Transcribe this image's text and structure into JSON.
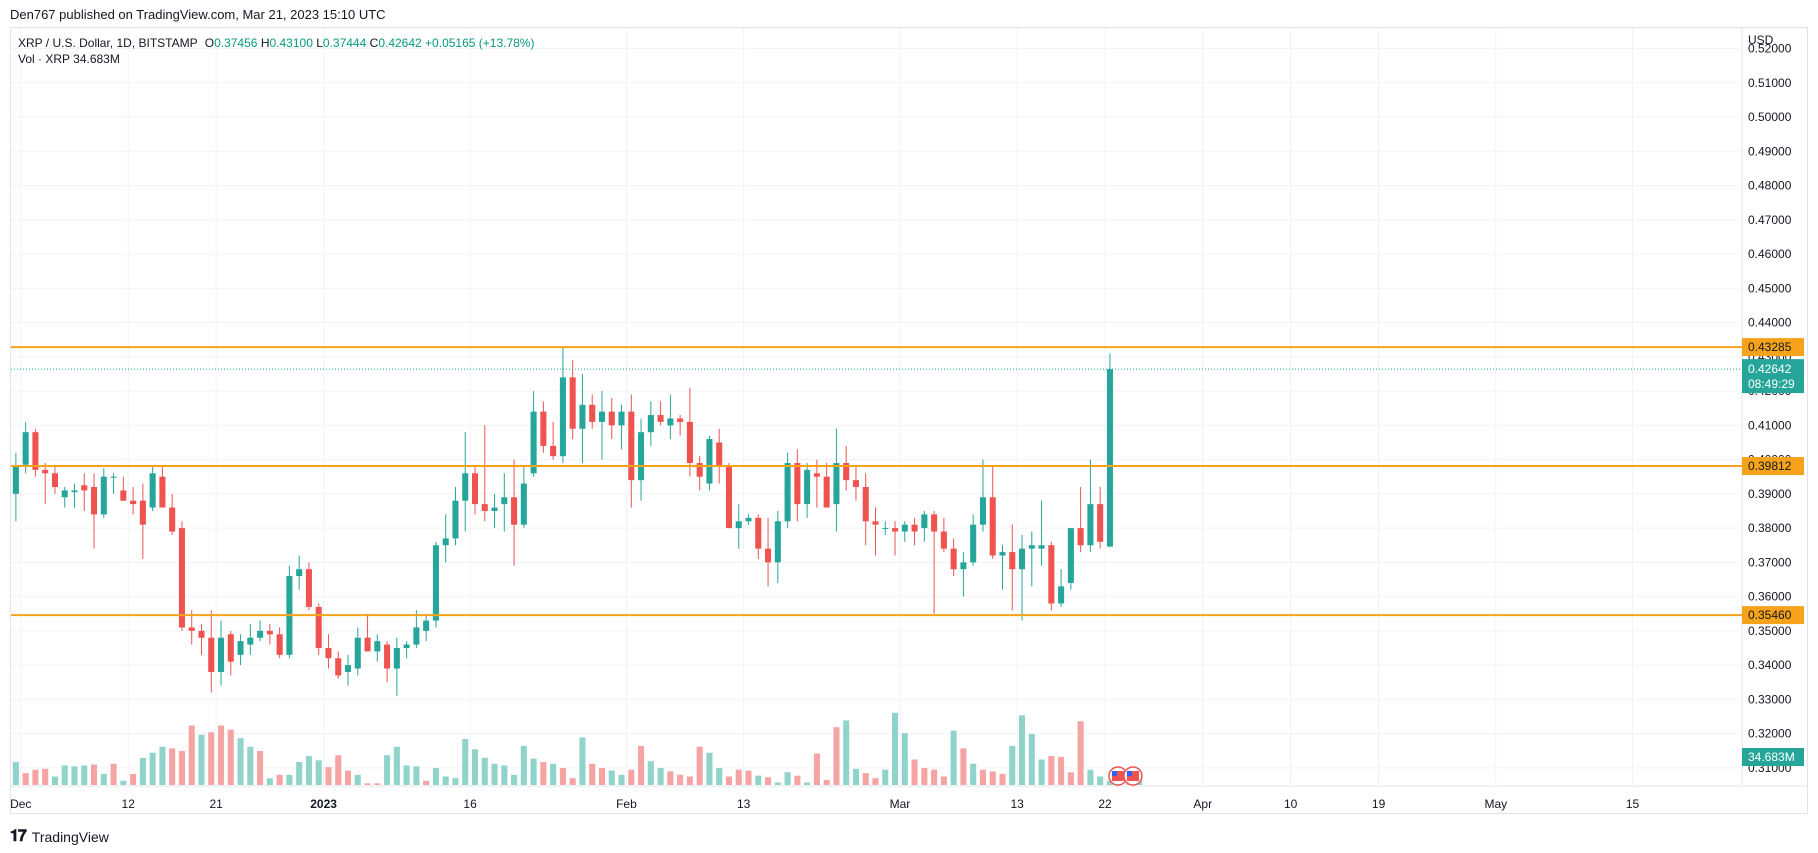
{
  "header": {
    "publish_line": "Den767 published on TradingView.com, Mar 21, 2023 15:10 UTC"
  },
  "legend": {
    "symbol": "XRP / U.S. Dollar, 1D, BITSTAMP",
    "open_label": "O",
    "open": "0.37456",
    "high_label": "H",
    "high": "0.43100",
    "low_label": "L",
    "low": "0.37444",
    "close_label": "C",
    "close": "0.42642",
    "change": "+0.05165 (+13.78%)",
    "volume_label": "Vol · XRP",
    "volume": "34.683M"
  },
  "footer": {
    "brand": "TradingView"
  },
  "colors": {
    "up": "#26a69a",
    "down": "#ef5350",
    "up_volume": "#8fd3cb",
    "down_volume": "#f5a3a3",
    "level_line": "#f7a21b",
    "grid": "#f0f3fa"
  },
  "chart_data": {
    "type": "candlestick",
    "currency_label": "USD",
    "ylim": [
      0.305,
      0.526
    ],
    "y_ticks": [
      "0.31000",
      "0.32000",
      "0.33000",
      "0.34000",
      "0.35000",
      "0.36000",
      "0.37000",
      "0.38000",
      "0.39000",
      "0.40000",
      "0.41000",
      "0.42000",
      "0.43000",
      "0.44000",
      "0.45000",
      "0.46000",
      "0.47000",
      "0.48000",
      "0.49000",
      "0.50000",
      "0.51000",
      "0.52000"
    ],
    "x_labels": [
      "Dec",
      "12",
      "21",
      "2023",
      "16",
      "Feb",
      "13",
      "Mar",
      "13",
      "22",
      "Apr",
      "10",
      "19",
      "May",
      "15"
    ],
    "x_label_dates": [
      "2022-12-01",
      "2022-12-12",
      "2022-12-21",
      "2023-01-01",
      "2023-01-16",
      "2023-02-01",
      "2023-02-13",
      "2023-03-01",
      "2023-03-13",
      "2023-03-22",
      "2023-04-01",
      "2023-04-10",
      "2023-04-19",
      "2023-05-01",
      "2023-05-15"
    ],
    "x_range": [
      "2022-11-30",
      "2023-05-26"
    ],
    "horizontal_levels": [
      0.43285,
      0.39812,
      0.3546
    ],
    "level_labels": [
      "0.43285",
      "0.39812",
      "0.35460"
    ],
    "last_price": "0.42642",
    "countdown": "08:49:29",
    "volume_badge": "34.683M",
    "candles": [
      {
        "o": 0.39,
        "h": 0.402,
        "l": 0.382,
        "c": 0.398
      },
      {
        "o": 0.3985,
        "h": 0.411,
        "l": 0.396,
        "c": 0.408
      },
      {
        "o": 0.408,
        "h": 0.409,
        "l": 0.395,
        "c": 0.397
      },
      {
        "o": 0.397,
        "h": 0.399,
        "l": 0.387,
        "c": 0.396
      },
      {
        "o": 0.396,
        "h": 0.3985,
        "l": 0.39,
        "c": 0.392
      },
      {
        "o": 0.389,
        "h": 0.392,
        "l": 0.386,
        "c": 0.391
      },
      {
        "o": 0.3905,
        "h": 0.393,
        "l": 0.386,
        "c": 0.391
      },
      {
        "o": 0.3925,
        "h": 0.396,
        "l": 0.385,
        "c": 0.391
      },
      {
        "o": 0.392,
        "h": 0.396,
        "l": 0.374,
        "c": 0.384
      },
      {
        "o": 0.384,
        "h": 0.3975,
        "l": 0.383,
        "c": 0.395
      },
      {
        "o": 0.395,
        "h": 0.396,
        "l": 0.39,
        "c": 0.395
      },
      {
        "o": 0.391,
        "h": 0.395,
        "l": 0.388,
        "c": 0.388
      },
      {
        "o": 0.388,
        "h": 0.392,
        "l": 0.384,
        "c": 0.387
      },
      {
        "o": 0.388,
        "h": 0.393,
        "l": 0.371,
        "c": 0.381
      },
      {
        "o": 0.386,
        "h": 0.398,
        "l": 0.385,
        "c": 0.396
      },
      {
        "o": 0.395,
        "h": 0.398,
        "l": 0.386,
        "c": 0.386
      },
      {
        "o": 0.386,
        "h": 0.39,
        "l": 0.378,
        "c": 0.379
      },
      {
        "o": 0.38,
        "h": 0.382,
        "l": 0.35,
        "c": 0.351
      },
      {
        "o": 0.351,
        "h": 0.356,
        "l": 0.346,
        "c": 0.35
      },
      {
        "o": 0.35,
        "h": 0.352,
        "l": 0.343,
        "c": 0.348
      },
      {
        "o": 0.348,
        "h": 0.356,
        "l": 0.332,
        "c": 0.338
      },
      {
        "o": 0.338,
        "h": 0.353,
        "l": 0.334,
        "c": 0.348
      },
      {
        "o": 0.349,
        "h": 0.35,
        "l": 0.337,
        "c": 0.341
      },
      {
        "o": 0.343,
        "h": 0.349,
        "l": 0.34,
        "c": 0.347
      },
      {
        "o": 0.346,
        "h": 0.352,
        "l": 0.343,
        "c": 0.348
      },
      {
        "o": 0.348,
        "h": 0.353,
        "l": 0.347,
        "c": 0.35
      },
      {
        "o": 0.35,
        "h": 0.352,
        "l": 0.346,
        "c": 0.349
      },
      {
        "o": 0.349,
        "h": 0.351,
        "l": 0.342,
        "c": 0.343
      },
      {
        "o": 0.343,
        "h": 0.369,
        "l": 0.342,
        "c": 0.366
      },
      {
        "o": 0.366,
        "h": 0.372,
        "l": 0.362,
        "c": 0.368
      },
      {
        "o": 0.368,
        "h": 0.37,
        "l": 0.356,
        "c": 0.357
      },
      {
        "o": 0.357,
        "h": 0.358,
        "l": 0.343,
        "c": 0.345
      },
      {
        "o": 0.345,
        "h": 0.349,
        "l": 0.339,
        "c": 0.342
      },
      {
        "o": 0.342,
        "h": 0.344,
        "l": 0.336,
        "c": 0.337
      },
      {
        "o": 0.338,
        "h": 0.343,
        "l": 0.334,
        "c": 0.34
      },
      {
        "o": 0.339,
        "h": 0.351,
        "l": 0.337,
        "c": 0.348
      },
      {
        "o": 0.348,
        "h": 0.355,
        "l": 0.344,
        "c": 0.344
      },
      {
        "o": 0.344,
        "h": 0.349,
        "l": 0.341,
        "c": 0.347
      },
      {
        "o": 0.346,
        "h": 0.347,
        "l": 0.335,
        "c": 0.339
      },
      {
        "o": 0.339,
        "h": 0.348,
        "l": 0.331,
        "c": 0.345
      },
      {
        "o": 0.345,
        "h": 0.347,
        "l": 0.342,
        "c": 0.346
      },
      {
        "o": 0.346,
        "h": 0.356,
        "l": 0.345,
        "c": 0.351
      },
      {
        "o": 0.35,
        "h": 0.355,
        "l": 0.347,
        "c": 0.353
      },
      {
        "o": 0.353,
        "h": 0.376,
        "l": 0.351,
        "c": 0.375
      },
      {
        "o": 0.375,
        "h": 0.384,
        "l": 0.37,
        "c": 0.377
      },
      {
        "o": 0.377,
        "h": 0.392,
        "l": 0.375,
        "c": 0.388
      },
      {
        "o": 0.388,
        "h": 0.408,
        "l": 0.379,
        "c": 0.396
      },
      {
        "o": 0.396,
        "h": 0.398,
        "l": 0.384,
        "c": 0.387
      },
      {
        "o": 0.387,
        "h": 0.41,
        "l": 0.382,
        "c": 0.385
      },
      {
        "o": 0.385,
        "h": 0.39,
        "l": 0.38,
        "c": 0.386
      },
      {
        "o": 0.387,
        "h": 0.396,
        "l": 0.379,
        "c": 0.389
      },
      {
        "o": 0.389,
        "h": 0.4,
        "l": 0.369,
        "c": 0.381
      },
      {
        "o": 0.381,
        "h": 0.398,
        "l": 0.38,
        "c": 0.393
      },
      {
        "o": 0.396,
        "h": 0.42,
        "l": 0.395,
        "c": 0.414
      },
      {
        "o": 0.414,
        "h": 0.417,
        "l": 0.402,
        "c": 0.404
      },
      {
        "o": 0.404,
        "h": 0.411,
        "l": 0.4,
        "c": 0.401
      },
      {
        "o": 0.401,
        "h": 0.433,
        "l": 0.399,
        "c": 0.424
      },
      {
        "o": 0.424,
        "h": 0.429,
        "l": 0.406,
        "c": 0.409
      },
      {
        "o": 0.409,
        "h": 0.425,
        "l": 0.399,
        "c": 0.416
      },
      {
        "o": 0.416,
        "h": 0.419,
        "l": 0.409,
        "c": 0.411
      },
      {
        "o": 0.411,
        "h": 0.42,
        "l": 0.4,
        "c": 0.414
      },
      {
        "o": 0.414,
        "h": 0.418,
        "l": 0.406,
        "c": 0.41
      },
      {
        "o": 0.41,
        "h": 0.416,
        "l": 0.403,
        "c": 0.414
      },
      {
        "o": 0.414,
        "h": 0.419,
        "l": 0.386,
        "c": 0.394
      },
      {
        "o": 0.394,
        "h": 0.412,
        "l": 0.388,
        "c": 0.408
      },
      {
        "o": 0.408,
        "h": 0.417,
        "l": 0.404,
        "c": 0.413
      },
      {
        "o": 0.413,
        "h": 0.417,
        "l": 0.41,
        "c": 0.411
      },
      {
        "o": 0.41,
        "h": 0.419,
        "l": 0.406,
        "c": 0.412
      },
      {
        "o": 0.412,
        "h": 0.413,
        "l": 0.407,
        "c": 0.411
      },
      {
        "o": 0.411,
        "h": 0.421,
        "l": 0.395,
        "c": 0.399
      },
      {
        "o": 0.399,
        "h": 0.401,
        "l": 0.391,
        "c": 0.395
      },
      {
        "o": 0.393,
        "h": 0.407,
        "l": 0.391,
        "c": 0.406
      },
      {
        "o": 0.405,
        "h": 0.409,
        "l": 0.393,
        "c": 0.398
      },
      {
        "o": 0.398,
        "h": 0.399,
        "l": 0.38,
        "c": 0.38
      },
      {
        "o": 0.38,
        "h": 0.387,
        "l": 0.374,
        "c": 0.382
      },
      {
        "o": 0.382,
        "h": 0.384,
        "l": 0.381,
        "c": 0.383
      },
      {
        "o": 0.383,
        "h": 0.384,
        "l": 0.371,
        "c": 0.374
      },
      {
        "o": 0.374,
        "h": 0.383,
        "l": 0.363,
        "c": 0.37
      },
      {
        "o": 0.37,
        "h": 0.385,
        "l": 0.364,
        "c": 0.382
      },
      {
        "o": 0.382,
        "h": 0.402,
        "l": 0.38,
        "c": 0.399
      },
      {
        "o": 0.399,
        "h": 0.403,
        "l": 0.382,
        "c": 0.387
      },
      {
        "o": 0.387,
        "h": 0.399,
        "l": 0.383,
        "c": 0.397
      },
      {
        "o": 0.396,
        "h": 0.4,
        "l": 0.386,
        "c": 0.395
      },
      {
        "o": 0.395,
        "h": 0.399,
        "l": 0.386,
        "c": 0.386
      },
      {
        "o": 0.387,
        "h": 0.409,
        "l": 0.379,
        "c": 0.399
      },
      {
        "o": 0.399,
        "h": 0.404,
        "l": 0.391,
        "c": 0.394
      },
      {
        "o": 0.394,
        "h": 0.398,
        "l": 0.388,
        "c": 0.392
      },
      {
        "o": 0.392,
        "h": 0.396,
        "l": 0.375,
        "c": 0.382
      },
      {
        "o": 0.382,
        "h": 0.386,
        "l": 0.372,
        "c": 0.381
      },
      {
        "o": 0.38,
        "h": 0.382,
        "l": 0.378,
        "c": 0.38
      },
      {
        "o": 0.38,
        "h": 0.382,
        "l": 0.372,
        "c": 0.379
      },
      {
        "o": 0.379,
        "h": 0.382,
        "l": 0.376,
        "c": 0.381
      },
      {
        "o": 0.381,
        "h": 0.383,
        "l": 0.375,
        "c": 0.379
      },
      {
        "o": 0.38,
        "h": 0.385,
        "l": 0.376,
        "c": 0.384
      },
      {
        "o": 0.384,
        "h": 0.385,
        "l": 0.355,
        "c": 0.379
      },
      {
        "o": 0.379,
        "h": 0.383,
        "l": 0.373,
        "c": 0.374
      },
      {
        "o": 0.374,
        "h": 0.377,
        "l": 0.366,
        "c": 0.368
      },
      {
        "o": 0.368,
        "h": 0.373,
        "l": 0.36,
        "c": 0.37
      },
      {
        "o": 0.37,
        "h": 0.384,
        "l": 0.369,
        "c": 0.381
      },
      {
        "o": 0.381,
        "h": 0.4,
        "l": 0.379,
        "c": 0.389
      },
      {
        "o": 0.389,
        "h": 0.398,
        "l": 0.371,
        "c": 0.372
      },
      {
        "o": 0.372,
        "h": 0.375,
        "l": 0.362,
        "c": 0.373
      },
      {
        "o": 0.373,
        "h": 0.381,
        "l": 0.356,
        "c": 0.368
      },
      {
        "o": 0.368,
        "h": 0.378,
        "l": 0.353,
        "c": 0.374
      },
      {
        "o": 0.374,
        "h": 0.379,
        "l": 0.363,
        "c": 0.375
      },
      {
        "o": 0.374,
        "h": 0.388,
        "l": 0.369,
        "c": 0.375
      },
      {
        "o": 0.375,
        "h": 0.376,
        "l": 0.356,
        "c": 0.358
      },
      {
        "o": 0.358,
        "h": 0.368,
        "l": 0.357,
        "c": 0.363
      },
      {
        "o": 0.364,
        "h": 0.38,
        "l": 0.362,
        "c": 0.38
      },
      {
        "o": 0.38,
        "h": 0.392,
        "l": 0.373,
        "c": 0.375
      },
      {
        "o": 0.375,
        "h": 0.4,
        "l": 0.373,
        "c": 0.387
      },
      {
        "o": 0.387,
        "h": 0.392,
        "l": 0.374,
        "c": 0.376
      },
      {
        "o": 0.3746,
        "h": 0.431,
        "l": 0.3744,
        "c": 0.4264
      }
    ],
    "volumes": [
      {
        "v": 27,
        "up": true
      },
      {
        "v": 14,
        "up": false
      },
      {
        "v": 18,
        "up": false
      },
      {
        "v": 19,
        "up": false
      },
      {
        "v": 10,
        "up": true
      },
      {
        "v": 23,
        "up": true
      },
      {
        "v": 22,
        "up": true
      },
      {
        "v": 23,
        "up": true
      },
      {
        "v": 24,
        "up": false
      },
      {
        "v": 13,
        "up": true
      },
      {
        "v": 25,
        "up": false
      },
      {
        "v": 5,
        "up": true
      },
      {
        "v": 13,
        "up": false
      },
      {
        "v": 32,
        "up": true
      },
      {
        "v": 38,
        "up": true
      },
      {
        "v": 45,
        "up": true
      },
      {
        "v": 43,
        "up": false
      },
      {
        "v": 40,
        "up": false
      },
      {
        "v": 70,
        "up": false
      },
      {
        "v": 59,
        "up": true
      },
      {
        "v": 62,
        "up": false
      },
      {
        "v": 70,
        "up": false
      },
      {
        "v": 65,
        "up": false
      },
      {
        "v": 55,
        "up": true
      },
      {
        "v": 45,
        "up": true
      },
      {
        "v": 40,
        "up": false
      },
      {
        "v": 8,
        "up": true
      },
      {
        "v": 12,
        "up": false
      },
      {
        "v": 12,
        "up": true
      },
      {
        "v": 27,
        "up": true
      },
      {
        "v": 34,
        "up": true
      },
      {
        "v": 29,
        "up": true
      },
      {
        "v": 21,
        "up": false
      },
      {
        "v": 35,
        "up": false
      },
      {
        "v": 17,
        "up": false
      },
      {
        "v": 12,
        "up": true
      },
      {
        "v": 2,
        "up": false
      },
      {
        "v": 2,
        "up": false
      },
      {
        "v": 35,
        "up": true
      },
      {
        "v": 45,
        "up": true
      },
      {
        "v": 23,
        "up": true
      },
      {
        "v": 22,
        "up": true
      },
      {
        "v": 5,
        "up": false
      },
      {
        "v": 20,
        "up": true
      },
      {
        "v": 10,
        "up": true
      },
      {
        "v": 8,
        "up": true
      },
      {
        "v": 54,
        "up": true
      },
      {
        "v": 42,
        "up": true
      },
      {
        "v": 32,
        "up": true
      },
      {
        "v": 25,
        "up": true
      },
      {
        "v": 23,
        "up": true
      },
      {
        "v": 12,
        "up": true
      },
      {
        "v": 46,
        "up": true
      },
      {
        "v": 31,
        "up": true
      },
      {
        "v": 27,
        "up": false
      },
      {
        "v": 25,
        "up": true
      },
      {
        "v": 20,
        "up": false
      },
      {
        "v": 8,
        "up": false
      },
      {
        "v": 56,
        "up": true
      },
      {
        "v": 25,
        "up": false
      },
      {
        "v": 20,
        "up": false
      },
      {
        "v": 17,
        "up": true
      },
      {
        "v": 12,
        "up": true
      },
      {
        "v": 18,
        "up": false
      },
      {
        "v": 46,
        "up": false
      },
      {
        "v": 28,
        "up": true
      },
      {
        "v": 20,
        "up": true
      },
      {
        "v": 16,
        "up": false
      },
      {
        "v": 12,
        "up": false
      },
      {
        "v": 10,
        "up": false
      },
      {
        "v": 45,
        "up": false
      },
      {
        "v": 38,
        "up": true
      },
      {
        "v": 20,
        "up": true
      },
      {
        "v": 10,
        "up": false
      },
      {
        "v": 18,
        "up": false
      },
      {
        "v": 17,
        "up": false
      },
      {
        "v": 11,
        "up": true
      },
      {
        "v": 9,
        "up": false
      },
      {
        "v": 3,
        "up": true
      },
      {
        "v": 15,
        "up": true
      },
      {
        "v": 11,
        "up": false
      },
      {
        "v": 3,
        "up": true
      },
      {
        "v": 37,
        "up": false
      },
      {
        "v": 6,
        "up": false
      },
      {
        "v": 68,
        "up": false
      },
      {
        "v": 76,
        "up": true
      },
      {
        "v": 19,
        "up": true
      },
      {
        "v": 14,
        "up": false
      },
      {
        "v": 8,
        "up": false
      },
      {
        "v": 18,
        "up": true
      },
      {
        "v": 85,
        "up": true
      },
      {
        "v": 61,
        "up": true
      },
      {
        "v": 30,
        "up": false
      },
      {
        "v": 20,
        "up": false
      },
      {
        "v": 18,
        "up": false
      },
      {
        "v": 10,
        "up": false
      },
      {
        "v": 64,
        "up": true
      },
      {
        "v": 43,
        "up": false
      },
      {
        "v": 25,
        "up": true
      },
      {
        "v": 18,
        "up": false
      },
      {
        "v": 16,
        "up": false
      },
      {
        "v": 13,
        "up": false
      },
      {
        "v": 46,
        "up": true
      },
      {
        "v": 82,
        "up": true
      },
      {
        "v": 60,
        "up": true
      },
      {
        "v": 30,
        "up": true
      },
      {
        "v": 34,
        "up": false
      },
      {
        "v": 33,
        "up": false
      },
      {
        "v": 15,
        "up": false
      },
      {
        "v": 75,
        "up": false
      },
      {
        "v": 18,
        "up": true
      },
      {
        "v": 10,
        "up": true
      },
      {
        "v": 5,
        "up": true
      },
      {
        "v": 10,
        "up": true
      },
      {
        "v": 11,
        "up": false
      },
      {
        "v": 9,
        "up": true
      }
    ]
  }
}
